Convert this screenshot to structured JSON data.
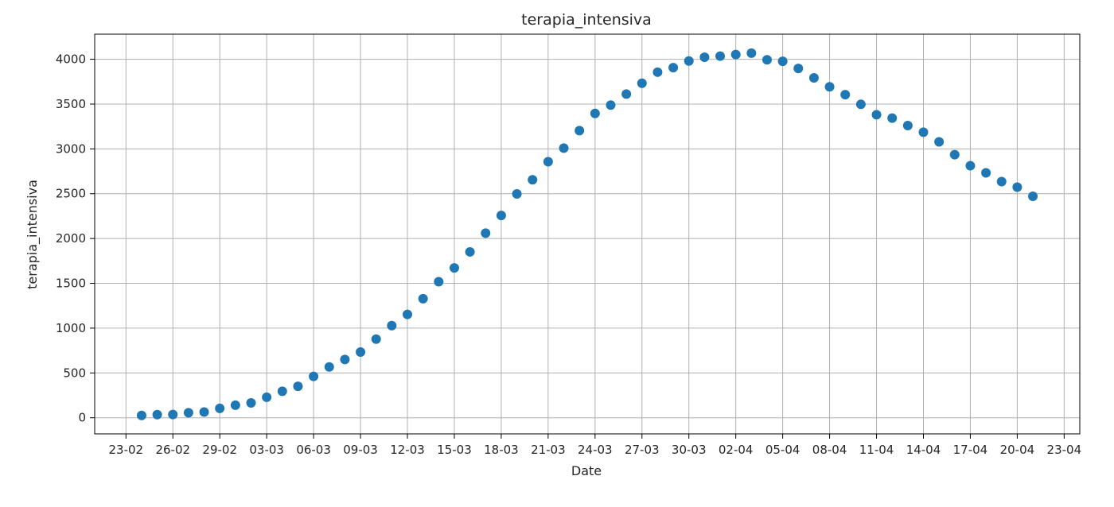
{
  "chart_data": {
    "type": "scatter",
    "title": "terapia_intensiva",
    "xlabel": "Date",
    "ylabel": "terapia_intensiva",
    "year": 2020,
    "x_tick_labels": [
      "23-02",
      "26-02",
      "29-02",
      "03-03",
      "06-03",
      "09-03",
      "12-03",
      "15-03",
      "18-03",
      "21-03",
      "24-03",
      "27-03",
      "30-03",
      "02-04",
      "05-04",
      "08-04",
      "11-04",
      "14-04",
      "17-04",
      "20-04",
      "23-04"
    ],
    "y_ticks": [
      0,
      500,
      1000,
      1500,
      2000,
      2500,
      3000,
      3500,
      4000
    ],
    "xlim": [
      "2020-02-21",
      "2020-04-24"
    ],
    "ylim": [
      -180,
      4280
    ],
    "grid": true,
    "marker_color": "#1f77b4",
    "series": [
      {
        "points": [
          [
            "2020-02-24",
            26
          ],
          [
            "2020-02-25",
            35
          ],
          [
            "2020-02-26",
            36
          ],
          [
            "2020-02-27",
            56
          ],
          [
            "2020-02-28",
            64
          ],
          [
            "2020-02-29",
            105
          ],
          [
            "2020-03-01",
            140
          ],
          [
            "2020-03-02",
            166
          ],
          [
            "2020-03-03",
            229
          ],
          [
            "2020-03-04",
            295
          ],
          [
            "2020-03-05",
            351
          ],
          [
            "2020-03-06",
            462
          ],
          [
            "2020-03-07",
            567
          ],
          [
            "2020-03-08",
            650
          ],
          [
            "2020-03-09",
            733
          ],
          [
            "2020-03-10",
            877
          ],
          [
            "2020-03-11",
            1028
          ],
          [
            "2020-03-12",
            1153
          ],
          [
            "2020-03-13",
            1328
          ],
          [
            "2020-03-14",
            1518
          ],
          [
            "2020-03-15",
            1672
          ],
          [
            "2020-03-16",
            1851
          ],
          [
            "2020-03-17",
            2060
          ],
          [
            "2020-03-18",
            2257
          ],
          [
            "2020-03-19",
            2498
          ],
          [
            "2020-03-20",
            2655
          ],
          [
            "2020-03-21",
            2857
          ],
          [
            "2020-03-22",
            3009
          ],
          [
            "2020-03-23",
            3204
          ],
          [
            "2020-03-24",
            3396
          ],
          [
            "2020-03-25",
            3489
          ],
          [
            "2020-03-26",
            3612
          ],
          [
            "2020-03-27",
            3732
          ],
          [
            "2020-03-28",
            3856
          ],
          [
            "2020-03-29",
            3906
          ],
          [
            "2020-03-30",
            3981
          ],
          [
            "2020-03-31",
            4023
          ],
          [
            "2020-04-01",
            4035
          ],
          [
            "2020-04-02",
            4053
          ],
          [
            "2020-04-03",
            4068
          ],
          [
            "2020-04-04",
            3994
          ],
          [
            "2020-04-05",
            3977
          ],
          [
            "2020-04-06",
            3898
          ],
          [
            "2020-04-07",
            3792
          ],
          [
            "2020-04-08",
            3693
          ],
          [
            "2020-04-09",
            3605
          ],
          [
            "2020-04-10",
            3497
          ],
          [
            "2020-04-11",
            3381
          ],
          [
            "2020-04-12",
            3343
          ],
          [
            "2020-04-13",
            3260
          ],
          [
            "2020-04-14",
            3186
          ],
          [
            "2020-04-15",
            3079
          ],
          [
            "2020-04-16",
            2936
          ],
          [
            "2020-04-17",
            2812
          ],
          [
            "2020-04-18",
            2733
          ],
          [
            "2020-04-19",
            2635
          ],
          [
            "2020-04-20",
            2573
          ],
          [
            "2020-04-21",
            2471
          ]
        ]
      }
    ]
  }
}
